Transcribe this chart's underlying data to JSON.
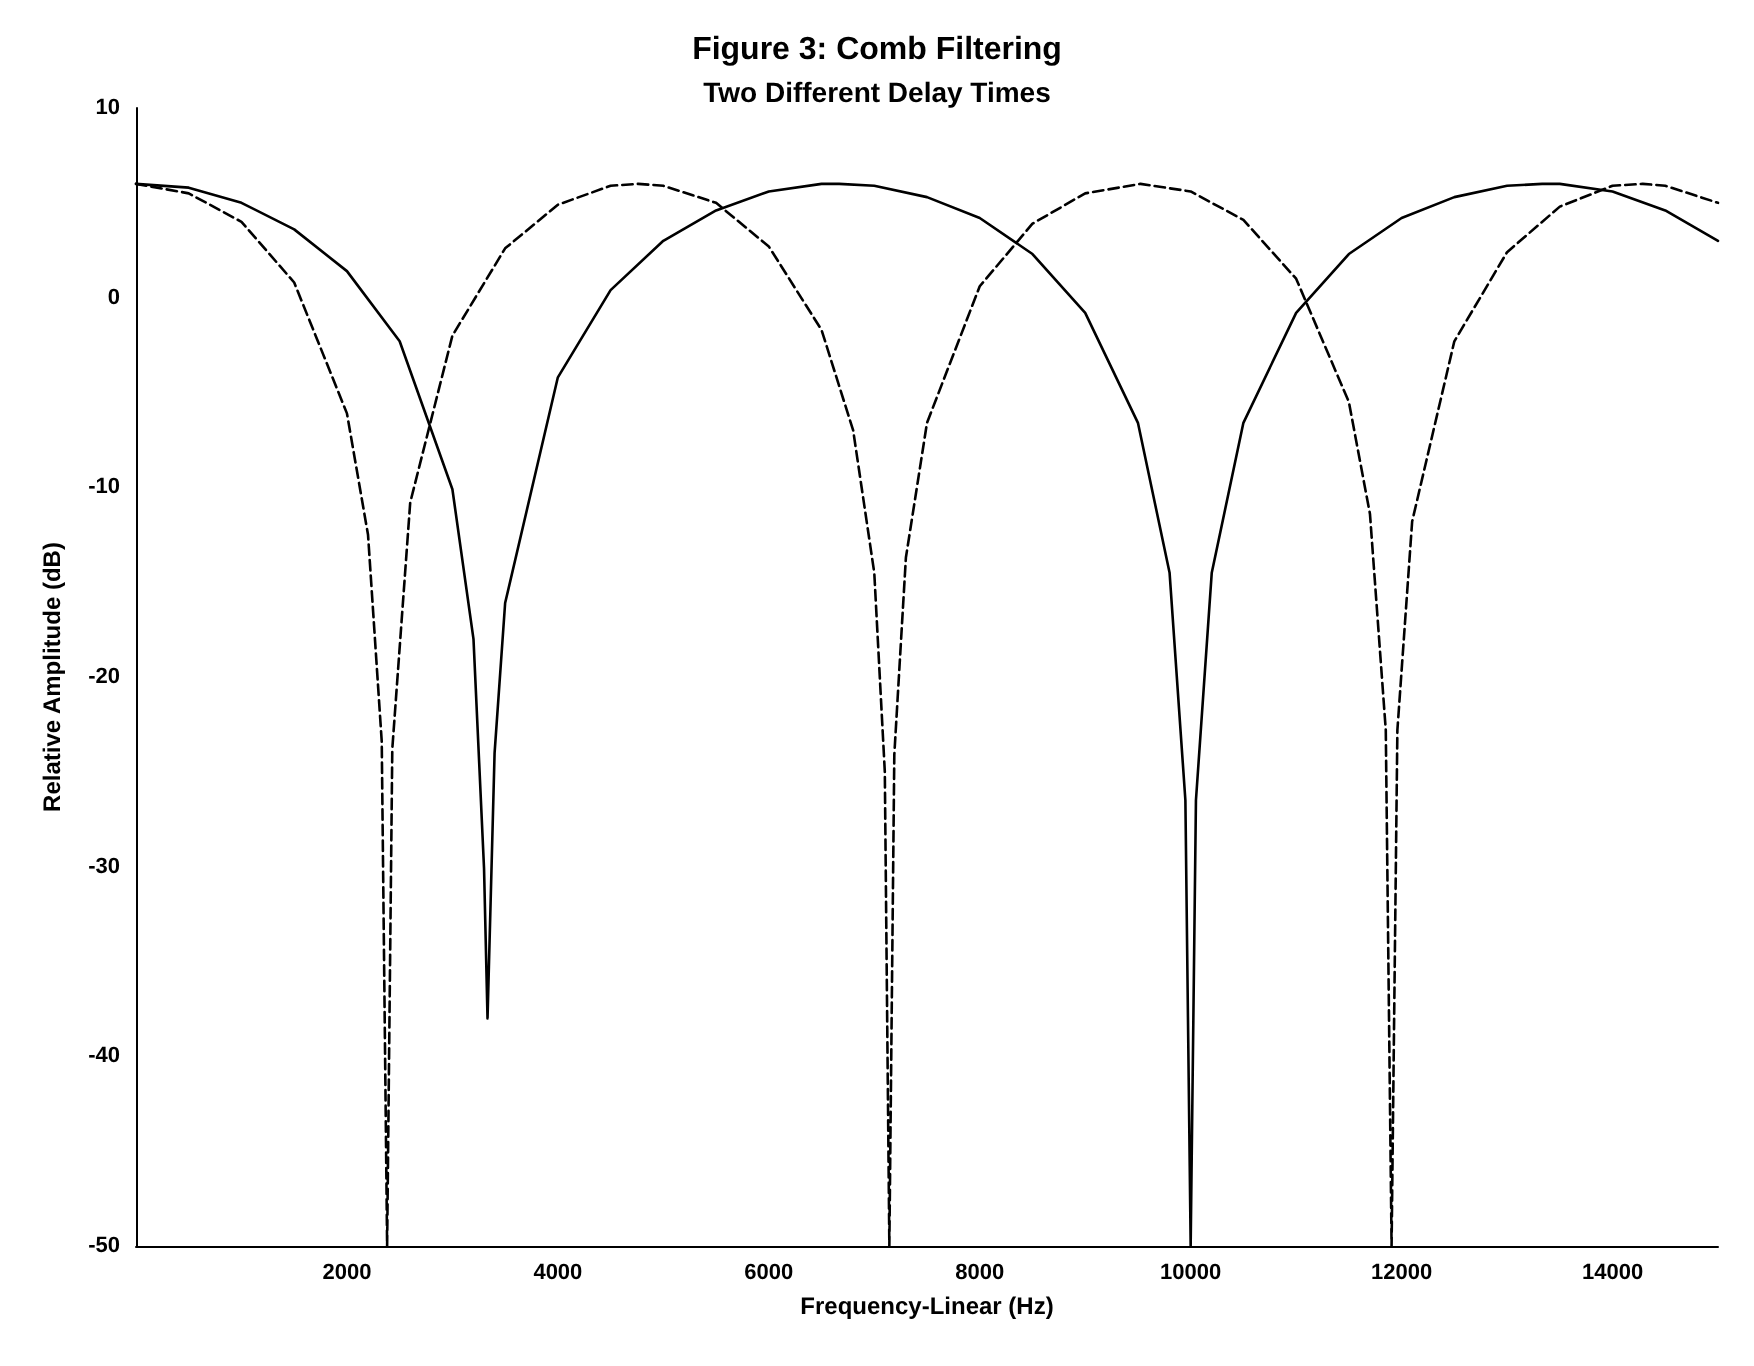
{
  "chart_data": {
    "type": "line",
    "title": "Figure 3: Comb Filtering",
    "subtitle": "Two Different Delay Times",
    "xlabel": "Frequency-Linear (Hz)",
    "ylabel": "Relative Amplitude (dB)",
    "xlim": [
      0,
      15000
    ],
    "xticks": [
      2000,
      4000,
      6000,
      8000,
      10000,
      12000,
      14000
    ],
    "ylim": [
      -50,
      10
    ],
    "yticks": [
      -50,
      -40,
      -30,
      -20,
      -10,
      0,
      10
    ],
    "grid": false,
    "marker": "none",
    "series": [
      {
        "color": "#000000",
        "line_style": "solid",
        "x": [
          0,
          500,
          1000,
          1500,
          2000,
          2500,
          3000,
          3200,
          3300,
          3333,
          3400,
          3500,
          4000,
          4500,
          5000,
          5500,
          6000,
          6500,
          6667,
          7000,
          7500,
          8000,
          8500,
          9000,
          9500,
          9800,
          9950,
          10000,
          10050,
          10200,
          10500,
          11000,
          11500,
          12000,
          12500,
          13000,
          13333,
          13500,
          14000,
          14500,
          15000
        ],
        "values": [
          6.0,
          5.8,
          5.0,
          3.6,
          1.4,
          -2.3,
          -10.1,
          -18.0,
          -30.1,
          -38,
          -24.0,
          -16.1,
          -4.2,
          0.4,
          3.0,
          4.6,
          5.6,
          6.0,
          6.0,
          5.9,
          5.3,
          4.2,
          2.3,
          -0.8,
          -6.6,
          -14.5,
          -26.5,
          -50,
          -26.5,
          -14.5,
          -6.6,
          -0.8,
          2.3,
          4.2,
          5.3,
          5.9,
          6.0,
          6.0,
          5.6,
          4.6,
          3.0
        ]
      },
      {
        "color": "#000000",
        "line_style": "dashed",
        "x": [
          0,
          500,
          1000,
          1500,
          2000,
          2200,
          2330,
          2381,
          2430,
          2600,
          3000,
          3500,
          4000,
          4500,
          4762,
          5000,
          5500,
          6000,
          6500,
          6800,
          7000,
          7100,
          7143,
          7190,
          7300,
          7500,
          8000,
          8500,
          9000,
          9524,
          10000,
          10500,
          11000,
          11500,
          11700,
          11850,
          11905,
          11960,
          12100,
          12500,
          13000,
          13500,
          14000,
          14286,
          14500,
          15000
        ],
        "values": [
          6.0,
          5.5,
          4.0,
          0.8,
          -6.1,
          -12.5,
          -23.4,
          -50,
          -23.8,
          -10.8,
          -2.0,
          2.6,
          4.9,
          5.9,
          6.0,
          5.9,
          5.0,
          2.7,
          -1.7,
          -7.0,
          -14.5,
          -25.0,
          -50,
          -24.1,
          -13.7,
          -6.6,
          0.6,
          3.9,
          5.5,
          6.0,
          5.6,
          4.1,
          1.0,
          -5.5,
          -11.4,
          -22.8,
          -50,
          -22.8,
          -11.8,
          -2.3,
          2.4,
          4.8,
          5.9,
          6.0,
          5.9,
          5.0
        ]
      }
    ]
  }
}
